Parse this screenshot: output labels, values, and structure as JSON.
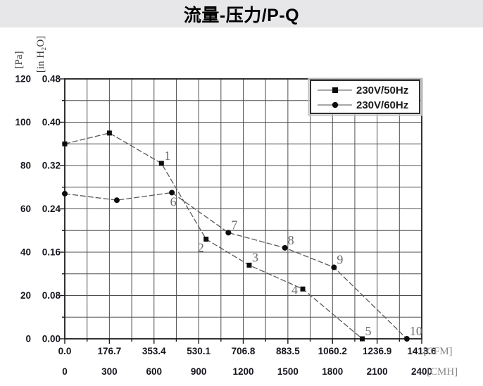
{
  "title": "流量-压力/P-Q",
  "colors": {
    "banner_bg": "#e7e7e9",
    "plot_bg": "#ffffff",
    "grid": "#4f4f4f",
    "frame": "#1b1b1b",
    "series_line": "#5a5a5a",
    "marker": "#0d0d0d",
    "tick_text": "#16161e",
    "unit_text": "#8a8a8a",
    "axis_unit_text": "#3a3a3a",
    "point_label": "#6a6a6a",
    "legend_border": "#2e2e2e",
    "legend_outer_border": "#c2c2c2",
    "legend_line": "#8a8a8a"
  },
  "chart_data": {
    "type": "line",
    "title": "流量-压力/P-Q",
    "grid": "on",
    "legend": {
      "position": "top-right",
      "entries": [
        {
          "label": "230V/50Hz",
          "marker": "square"
        },
        {
          "label": "230V/60Hz",
          "marker": "circle"
        }
      ]
    },
    "x_axis": {
      "range_cmh": [
        0,
        2400
      ],
      "major_step_cmh": 300,
      "minor_step_cmh": 150,
      "unit_rows": [
        {
          "unit": "[CFM]",
          "ticks": [
            "0.0",
            "176.7",
            "353.4",
            "530.1",
            "706.8",
            "883.5",
            "1060.2",
            "1236.9",
            "1413.6"
          ]
        },
        {
          "unit": "[CMH]",
          "ticks": [
            "0",
            "300",
            "600",
            "900",
            "1200",
            "1500",
            "1800",
            "2100",
            "2400"
          ]
        }
      ]
    },
    "y_axis": {
      "range_pa": [
        0,
        120
      ],
      "major_step_pa": 20,
      "minor_step_pa": 10,
      "unit_cols": [
        {
          "unit": "[Pa]",
          "ticks": [
            "120",
            "100",
            "80",
            "60",
            "40",
            "20",
            "0"
          ]
        },
        {
          "unit": "[in H₂O]",
          "ticks": [
            "0.48",
            "0.40",
            "0.32",
            "0.24",
            "0.16",
            "0.08",
            "0.00"
          ]
        }
      ]
    },
    "series": [
      {
        "name": "230V/50Hz",
        "marker": "square",
        "points": [
          {
            "cmh": 0,
            "pa": 90
          },
          {
            "cmh": 300,
            "pa": 95
          },
          {
            "cmh": 650,
            "pa": 81,
            "label": "1",
            "label_pos": "above-right"
          },
          {
            "cmh": 950,
            "pa": 46,
            "label": "2",
            "label_pos": "below-left"
          },
          {
            "cmh": 1240,
            "pa": 34,
            "label": "3",
            "label_pos": "above-right"
          },
          {
            "cmh": 1600,
            "pa": 23,
            "label": "4",
            "label_pos": "left-below"
          },
          {
            "cmh": 2000,
            "pa": 0,
            "label": "5",
            "label_pos": "above-right"
          }
        ]
      },
      {
        "name": "230V/60Hz",
        "marker": "circle",
        "points": [
          {
            "cmh": 0,
            "pa": 67
          },
          {
            "cmh": 350,
            "pa": 64
          },
          {
            "cmh": 720,
            "pa": 67.5,
            "label": "6",
            "label_pos": "below"
          },
          {
            "cmh": 1100,
            "pa": 49,
            "label": "7",
            "label_pos": "above-right"
          },
          {
            "cmh": 1480,
            "pa": 42,
            "label": "8",
            "label_pos": "above-right"
          },
          {
            "cmh": 1810,
            "pa": 33,
            "label": "9",
            "label_pos": "above-right"
          },
          {
            "cmh": 2300,
            "pa": 0,
            "label": "10",
            "label_pos": "above-right"
          }
        ]
      }
    ]
  }
}
